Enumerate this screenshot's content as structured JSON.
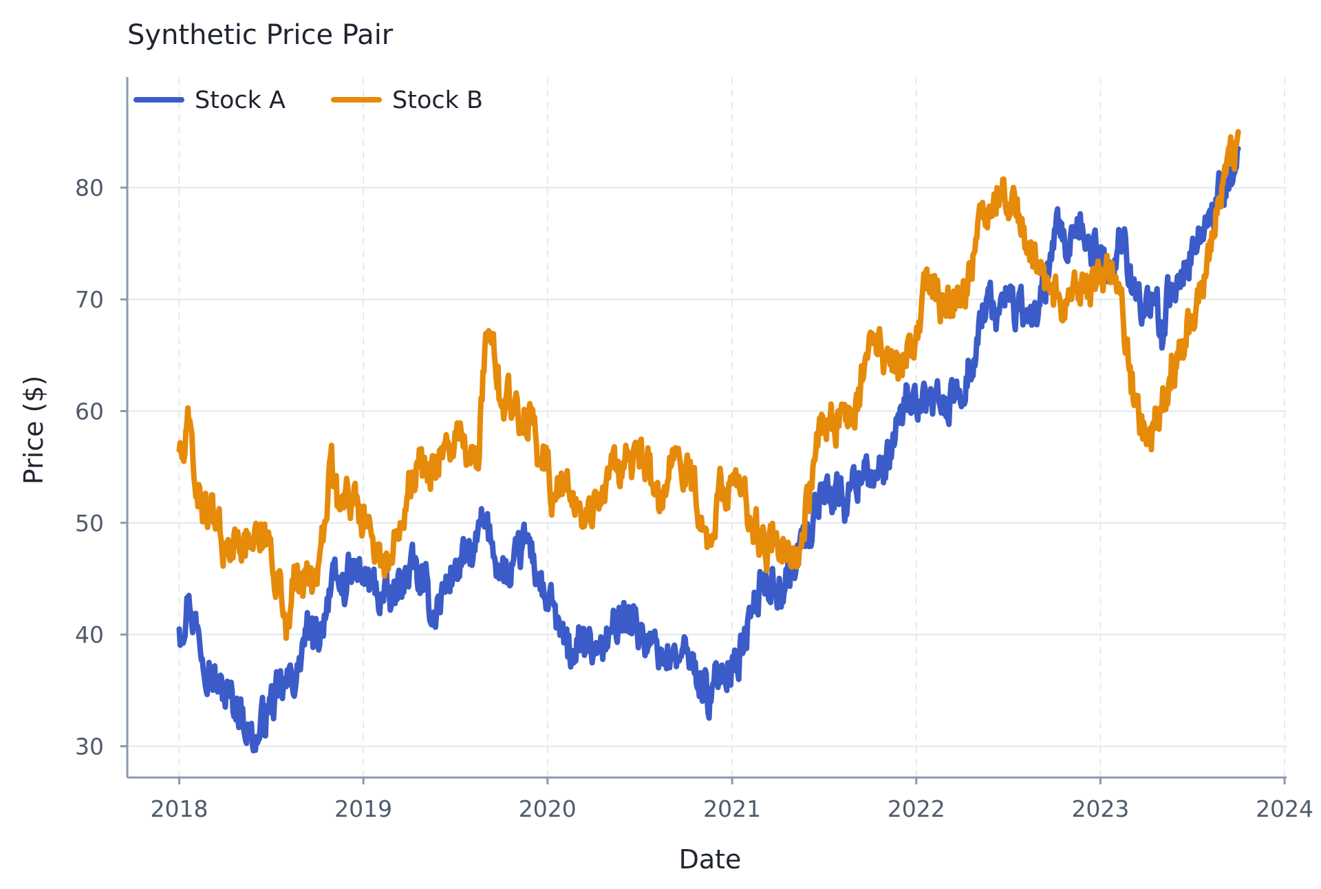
{
  "chart_data": {
    "type": "line",
    "title": "Synthetic Price Pair",
    "xlabel": "Date",
    "ylabel": "Price ($)",
    "xlim": [
      "2017-09-20",
      "2024-01-05"
    ],
    "ylim": [
      27.2,
      89.9
    ],
    "x_ticks": [
      "2018",
      "2019",
      "2020",
      "2021",
      "2022",
      "2023",
      "2024"
    ],
    "y_ticks": [
      "30",
      "40",
      "50",
      "60",
      "70",
      "80"
    ],
    "grid": true,
    "legend": "top-left",
    "series": [
      {
        "name": "Stock A",
        "color": "#3b5cc8",
        "points": [
          [
            "2018-01-01",
            40.5
          ],
          [
            "2018-01-20",
            43.5
          ],
          [
            "2018-02-10",
            39.5
          ],
          [
            "2018-03-01",
            37.5
          ],
          [
            "2018-03-20",
            35.0
          ],
          [
            "2018-04-10",
            34.5
          ],
          [
            "2018-05-01",
            33.5
          ],
          [
            "2018-05-20",
            31.5
          ],
          [
            "2018-06-05",
            30.3
          ],
          [
            "2018-06-25",
            33.5
          ],
          [
            "2018-07-15",
            34.5
          ],
          [
            "2018-08-05",
            35.5
          ],
          [
            "2018-08-25",
            37.0
          ],
          [
            "2018-09-10",
            40.5
          ],
          [
            "2018-09-25",
            39.0
          ],
          [
            "2018-10-10",
            41.0
          ],
          [
            "2018-10-25",
            44.0
          ],
          [
            "2018-11-15",
            44.0
          ],
          [
            "2018-12-10",
            45.5
          ],
          [
            "2019-01-01",
            45.0
          ],
          [
            "2019-01-20",
            44.5
          ],
          [
            "2019-02-10",
            43.0
          ],
          [
            "2019-03-01",
            43.0
          ],
          [
            "2019-03-20",
            45.0
          ],
          [
            "2019-04-10",
            46.0
          ],
          [
            "2019-05-01",
            44.0
          ],
          [
            "2019-05-20",
            42.0
          ],
          [
            "2019-06-10",
            44.0
          ],
          [
            "2019-07-01",
            46.0
          ],
          [
            "2019-07-20",
            46.5
          ],
          [
            "2019-08-10",
            47.5
          ],
          [
            "2019-08-25",
            50.0
          ],
          [
            "2019-09-10",
            48.5
          ],
          [
            "2019-10-01",
            46.0
          ],
          [
            "2019-10-20",
            44.5
          ],
          [
            "2019-11-10",
            47.5
          ],
          [
            "2019-11-25",
            48.5
          ],
          [
            "2019-12-10",
            45.5
          ],
          [
            "2019-12-31",
            43.0
          ],
          [
            "2020-01-20",
            41.0
          ],
          [
            "2020-02-10",
            38.0
          ],
          [
            "2020-03-01",
            39.0
          ],
          [
            "2020-03-20",
            38.5
          ],
          [
            "2020-04-10",
            39.0
          ],
          [
            "2020-05-01",
            40.0
          ],
          [
            "2020-05-20",
            40.5
          ],
          [
            "2020-06-10",
            42.5
          ],
          [
            "2020-07-01",
            40.5
          ],
          [
            "2020-07-20",
            39.0
          ],
          [
            "2020-08-10",
            38.5
          ],
          [
            "2020-09-01",
            38.0
          ],
          [
            "2020-09-20",
            38.0
          ],
          [
            "2020-10-10",
            37.5
          ],
          [
            "2020-11-01",
            36.0
          ],
          [
            "2020-11-20",
            34.0
          ],
          [
            "2020-12-10",
            37.0
          ],
          [
            "2020-12-31",
            37.5
          ],
          [
            "2021-01-20",
            38.5
          ],
          [
            "2021-02-10",
            42.0
          ],
          [
            "2021-03-01",
            44.5
          ],
          [
            "2021-03-20",
            45.0
          ],
          [
            "2021-04-10",
            44.0
          ],
          [
            "2021-05-01",
            45.5
          ],
          [
            "2021-05-20",
            48.5
          ],
          [
            "2021-06-10",
            50.0
          ],
          [
            "2021-07-01",
            53.5
          ],
          [
            "2021-07-20",
            53.0
          ],
          [
            "2021-08-10",
            52.0
          ],
          [
            "2021-09-01",
            53.5
          ],
          [
            "2021-09-20",
            55.5
          ],
          [
            "2021-10-10",
            54.0
          ],
          [
            "2021-11-01",
            54.0
          ],
          [
            "2021-11-20",
            57.5
          ],
          [
            "2021-12-10",
            60.5
          ],
          [
            "2021-12-31",
            61.0
          ],
          [
            "2022-01-20",
            60.0
          ],
          [
            "2022-02-10",
            62.0
          ],
          [
            "2022-03-01",
            59.5
          ],
          [
            "2022-03-20",
            61.5
          ],
          [
            "2022-04-10",
            63.0
          ],
          [
            "2022-05-01",
            66.5
          ],
          [
            "2022-05-20",
            70.0
          ],
          [
            "2022-06-10",
            68.5
          ],
          [
            "2022-07-01",
            70.5
          ],
          [
            "2022-07-20",
            69.0
          ],
          [
            "2022-08-10",
            68.0
          ],
          [
            "2022-09-01",
            69.5
          ],
          [
            "2022-09-20",
            72.0
          ],
          [
            "2022-10-10",
            76.0
          ],
          [
            "2022-11-01",
            74.0
          ],
          [
            "2022-11-20",
            75.5
          ],
          [
            "2022-12-10",
            75.0
          ],
          [
            "2022-12-31",
            74.0
          ],
          [
            "2023-01-20",
            72.5
          ],
          [
            "2023-02-10",
            75.5
          ],
          [
            "2023-03-01",
            73.0
          ],
          [
            "2023-03-20",
            70.0
          ],
          [
            "2023-04-10",
            68.5
          ],
          [
            "2023-05-01",
            68.0
          ],
          [
            "2023-05-20",
            70.5
          ],
          [
            "2023-06-10",
            72.5
          ],
          [
            "2023-07-01",
            74.5
          ],
          [
            "2023-07-20",
            75.5
          ],
          [
            "2023-08-10",
            78.5
          ],
          [
            "2023-09-01",
            79.5
          ],
          [
            "2023-09-20",
            80.5
          ],
          [
            "2023-10-01",
            83.5
          ]
        ]
      },
      {
        "name": "Stock B",
        "color": "#e68a0a",
        "points": [
          [
            "2018-01-01",
            56.5
          ],
          [
            "2018-01-10",
            55.5
          ],
          [
            "2018-01-20",
            59.0
          ],
          [
            "2018-02-05",
            53.0
          ],
          [
            "2018-02-20",
            51.5
          ],
          [
            "2018-03-10",
            50.0
          ],
          [
            "2018-03-25",
            48.5
          ],
          [
            "2018-04-10",
            47.0
          ],
          [
            "2018-04-25",
            48.5
          ],
          [
            "2018-05-10",
            49.0
          ],
          [
            "2018-05-25",
            48.0
          ],
          [
            "2018-06-10",
            47.5
          ],
          [
            "2018-06-25",
            48.5
          ],
          [
            "2018-07-15",
            45.5
          ],
          [
            "2018-07-30",
            41.5
          ],
          [
            "2018-08-15",
            44.0
          ],
          [
            "2018-09-01",
            45.5
          ],
          [
            "2018-09-15",
            44.5
          ],
          [
            "2018-10-01",
            44.5
          ],
          [
            "2018-10-15",
            49.5
          ],
          [
            "2018-10-28",
            56.0
          ],
          [
            "2018-11-10",
            51.5
          ],
          [
            "2018-11-25",
            52.5
          ],
          [
            "2018-12-10",
            52.5
          ],
          [
            "2018-12-25",
            51.5
          ],
          [
            "2019-01-10",
            50.0
          ],
          [
            "2019-01-25",
            48.0
          ],
          [
            "2019-02-10",
            46.5
          ],
          [
            "2019-02-25",
            46.5
          ],
          [
            "2019-03-15",
            50.0
          ],
          [
            "2019-04-01",
            54.5
          ],
          [
            "2019-04-20",
            55.0
          ],
          [
            "2019-05-10",
            54.0
          ],
          [
            "2019-06-01",
            56.5
          ],
          [
            "2019-06-20",
            56.5
          ],
          [
            "2019-07-10",
            57.5
          ],
          [
            "2019-07-30",
            55.5
          ],
          [
            "2019-08-15",
            55.5
          ],
          [
            "2019-08-28",
            63.5
          ],
          [
            "2019-09-10",
            67.0
          ],
          [
            "2019-09-25",
            64.0
          ],
          [
            "2019-10-10",
            61.0
          ],
          [
            "2019-10-25",
            60.0
          ],
          [
            "2019-11-10",
            58.5
          ],
          [
            "2019-11-25",
            60.0
          ],
          [
            "2019-12-10",
            57.0
          ],
          [
            "2019-12-31",
            55.5
          ],
          [
            "2020-01-15",
            52.0
          ],
          [
            "2020-02-01",
            53.5
          ],
          [
            "2020-02-15",
            52.0
          ],
          [
            "2020-03-01",
            51.5
          ],
          [
            "2020-03-20",
            50.5
          ],
          [
            "2020-04-10",
            52.0
          ],
          [
            "2020-05-01",
            54.0
          ],
          [
            "2020-05-20",
            55.5
          ],
          [
            "2020-06-10",
            56.0
          ],
          [
            "2020-07-01",
            55.0
          ],
          [
            "2020-07-20",
            54.5
          ],
          [
            "2020-08-10",
            51.0
          ],
          [
            "2020-09-01",
            55.0
          ],
          [
            "2020-09-20",
            55.5
          ],
          [
            "2020-10-10",
            55.5
          ],
          [
            "2020-11-01",
            50.5
          ],
          [
            "2020-11-20",
            48.0
          ],
          [
            "2020-12-10",
            54.0
          ],
          [
            "2020-12-31",
            53.5
          ],
          [
            "2021-01-20",
            53.0
          ],
          [
            "2021-02-10",
            50.0
          ],
          [
            "2021-03-01",
            48.5
          ],
          [
            "2021-03-20",
            47.5
          ],
          [
            "2021-04-10",
            46.5
          ],
          [
            "2021-05-01",
            46.5
          ],
          [
            "2021-05-20",
            49.0
          ],
          [
            "2021-06-10",
            55.0
          ],
          [
            "2021-07-01",
            59.0
          ],
          [
            "2021-07-20",
            59.0
          ],
          [
            "2021-08-10",
            60.0
          ],
          [
            "2021-09-01",
            58.5
          ],
          [
            "2021-09-20",
            64.0
          ],
          [
            "2021-10-10",
            66.0
          ],
          [
            "2021-11-01",
            64.5
          ],
          [
            "2021-11-20",
            63.5
          ],
          [
            "2021-12-10",
            64.0
          ],
          [
            "2021-12-31",
            66.5
          ],
          [
            "2022-01-20",
            72.5
          ],
          [
            "2022-02-10",
            70.0
          ],
          [
            "2022-03-01",
            68.5
          ],
          [
            "2022-03-20",
            70.5
          ],
          [
            "2022-04-10",
            71.0
          ],
          [
            "2022-05-01",
            75.5
          ],
          [
            "2022-05-20",
            78.0
          ],
          [
            "2022-06-10",
            80.0
          ],
          [
            "2022-07-01",
            78.5
          ],
          [
            "2022-07-20",
            79.0
          ],
          [
            "2022-08-10",
            75.0
          ],
          [
            "2022-09-01",
            73.0
          ],
          [
            "2022-09-20",
            71.0
          ],
          [
            "2022-10-10",
            70.5
          ],
          [
            "2022-11-01",
            70.0
          ],
          [
            "2022-11-20",
            70.0
          ],
          [
            "2022-12-10",
            71.0
          ],
          [
            "2022-12-31",
            71.5
          ],
          [
            "2023-01-20",
            71.5
          ],
          [
            "2023-02-10",
            70.5
          ],
          [
            "2023-03-01",
            64.0
          ],
          [
            "2023-03-20",
            58.0
          ],
          [
            "2023-04-10",
            58.5
          ],
          [
            "2023-05-01",
            60.0
          ],
          [
            "2023-05-20",
            62.0
          ],
          [
            "2023-06-10",
            65.0
          ],
          [
            "2023-07-01",
            68.5
          ],
          [
            "2023-07-20",
            71.5
          ],
          [
            "2023-08-10",
            76.0
          ],
          [
            "2023-09-01",
            80.5
          ],
          [
            "2023-09-20",
            82.5
          ],
          [
            "2023-10-01",
            85.0
          ]
        ]
      }
    ]
  }
}
